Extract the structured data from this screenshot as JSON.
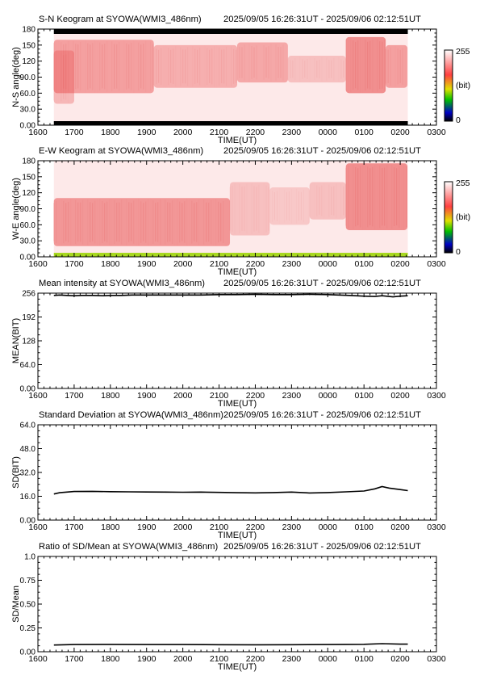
{
  "chart_data": [
    {
      "type": "heatmap",
      "title": "S-N Keogram at SYOWA(WMI3_486nm)",
      "subtitle": "2025/09/05 16:26:31UT - 2025/09/06 02:12:51UT",
      "xlabel": "TIME(UT)",
      "ylabel": "N-S angle(deg)",
      "x_ticks": [
        "1600",
        "1700",
        "1800",
        "1900",
        "2000",
        "2100",
        "2200",
        "2300",
        "0000",
        "0100",
        "0200",
        "0300"
      ],
      "xlim_hours": [
        16,
        27
      ],
      "y_ticks": [
        "0.00",
        "30.0",
        "60.0",
        "90.0",
        "120",
        "150",
        "180"
      ],
      "ylim": [
        0,
        180
      ],
      "colorbar": {
        "min_label": "0",
        "max_label": "255",
        "unit": "(bit)"
      },
      "data_start_hour": 16.44,
      "data_end_hour": 26.21,
      "bands": [
        {
          "t0": 16.44,
          "t1": 19.2,
          "a0": 60,
          "a1": 160,
          "level": 0.45
        },
        {
          "t0": 16.44,
          "t1": 17.0,
          "a0": 40,
          "a1": 140,
          "level": 0.3
        },
        {
          "t0": 19.2,
          "t1": 21.5,
          "a0": 70,
          "a1": 150,
          "level": 0.35
        },
        {
          "t0": 21.5,
          "t1": 22.9,
          "a0": 80,
          "a1": 155,
          "level": 0.4
        },
        {
          "t0": 22.9,
          "t1": 24.5,
          "a0": 80,
          "a1": 130,
          "level": 0.25
        },
        {
          "t0": 24.5,
          "t1": 25.6,
          "a0": 60,
          "a1": 165,
          "level": 0.55
        },
        {
          "t0": 25.6,
          "t1": 26.2,
          "a0": 70,
          "a1": 150,
          "level": 0.45
        }
      ]
    },
    {
      "type": "heatmap",
      "title": "E-W Keogram at SYOWA(WMI3_486nm)",
      "subtitle": "2025/09/05 16:26:31UT - 2025/09/06 02:12:51UT",
      "xlabel": "TIME(UT)",
      "ylabel": "W-E angle(deg)",
      "x_ticks": [
        "1600",
        "1700",
        "1800",
        "1900",
        "2000",
        "2100",
        "2200",
        "2300",
        "0000",
        "0100",
        "0200",
        "0300"
      ],
      "xlim_hours": [
        16,
        27
      ],
      "y_ticks": [
        "0.00",
        "30.0",
        "60.0",
        "90.0",
        "120",
        "150",
        "180"
      ],
      "ylim": [
        0,
        180
      ],
      "colorbar": {
        "min_label": "0",
        "max_label": "255",
        "unit": "(bit)"
      },
      "data_start_hour": 16.44,
      "data_end_hour": 26.21,
      "bands": [
        {
          "t0": 16.44,
          "t1": 21.3,
          "a0": 20,
          "a1": 110,
          "level": 0.5
        },
        {
          "t0": 21.3,
          "t1": 22.4,
          "a0": 40,
          "a1": 140,
          "level": 0.25
        },
        {
          "t0": 22.4,
          "t1": 23.5,
          "a0": 60,
          "a1": 130,
          "level": 0.2
        },
        {
          "t0": 23.5,
          "t1": 24.5,
          "a0": 70,
          "a1": 140,
          "level": 0.25
        },
        {
          "t0": 24.5,
          "t1": 26.2,
          "a0": 50,
          "a1": 175,
          "level": 0.55
        }
      ]
    },
    {
      "type": "line",
      "title": "Mean intensity at SYOWA(WMI3_486nm)",
      "subtitle": "2025/09/05 16:26:31UT - 2025/09/06 02:12:51UT",
      "xlabel": "TIME(UT)",
      "ylabel": "MEAN(BIT)",
      "x_ticks": [
        "1600",
        "1700",
        "1800",
        "1900",
        "2000",
        "2100",
        "2200",
        "2300",
        "0000",
        "0100",
        "0200",
        "0300"
      ],
      "xlim_hours": [
        16,
        27
      ],
      "y_ticks": [
        "0.00",
        "64.0",
        "128",
        "192",
        "256"
      ],
      "ylim": [
        0,
        256
      ],
      "series": [
        {
          "x": [
            16.44,
            16.6,
            16.8,
            17.0,
            17.2,
            17.5,
            17.8,
            18.0,
            18.3,
            18.6,
            19.0,
            19.5,
            20.0,
            20.5,
            21.0,
            21.5,
            22.0,
            22.5,
            23.0,
            23.5,
            24.0,
            24.3,
            24.6,
            25.0,
            25.3,
            25.5,
            25.8,
            26.0,
            26.21
          ],
          "y": [
            250,
            251,
            250,
            249,
            250,
            250,
            249,
            250,
            250,
            251,
            251,
            251,
            251,
            251,
            252,
            252,
            253,
            252,
            252,
            253,
            252,
            251,
            250,
            248,
            247,
            249,
            246,
            248,
            249
          ]
        }
      ]
    },
    {
      "type": "line",
      "title": "Standard Deviation at SYOWA(WMI3_486nm)",
      "subtitle": "2025/09/05 16:26:31UT - 2025/09/06 02:12:51UT",
      "xlabel": "TIME(UT)",
      "ylabel": "SD(BIT)",
      "x_ticks": [
        "1600",
        "1700",
        "1800",
        "1900",
        "2000",
        "2100",
        "2200",
        "2300",
        "0000",
        "0100",
        "0200",
        "0300"
      ],
      "xlim_hours": [
        16,
        27
      ],
      "y_ticks": [
        "0.00",
        "16.0",
        "32.0",
        "48.0",
        "64.0"
      ],
      "ylim": [
        0,
        64
      ],
      "series": [
        {
          "x": [
            16.44,
            16.6,
            16.8,
            17.0,
            17.5,
            18.0,
            18.5,
            19.0,
            19.5,
            20.0,
            20.5,
            21.0,
            21.5,
            22.0,
            22.5,
            23.0,
            23.5,
            24.0,
            24.5,
            25.0,
            25.3,
            25.5,
            25.7,
            26.0,
            26.21
          ],
          "y": [
            17.5,
            18.4,
            18.8,
            19.2,
            19.3,
            19.1,
            19.0,
            18.9,
            18.8,
            18.7,
            18.8,
            18.6,
            18.4,
            18.3,
            18.5,
            18.8,
            18.2,
            18.5,
            19.0,
            19.5,
            21.0,
            22.5,
            21.5,
            20.5,
            19.8
          ]
        }
      ]
    },
    {
      "type": "line",
      "title": "Ratio of SD/Mean at SYOWA(WMI3_486nm)",
      "subtitle": "2025/09/05 16:26:31UT - 2025/09/06 02:12:51UT",
      "xlabel": "TIME(UT)",
      "ylabel": "SD/Mean",
      "x_ticks": [
        "1600",
        "1700",
        "1800",
        "1900",
        "2000",
        "2100",
        "2200",
        "2300",
        "0000",
        "0100",
        "0200",
        "0300"
      ],
      "xlim_hours": [
        16,
        27
      ],
      "y_ticks": [
        "0.00",
        "0.25",
        "0.50",
        "0.75",
        "1.0"
      ],
      "ylim": [
        0,
        1.0
      ],
      "series": [
        {
          "x": [
            16.44,
            17.0,
            18.0,
            19.0,
            20.0,
            21.0,
            22.0,
            23.0,
            24.0,
            25.0,
            25.5,
            26.0,
            26.21
          ],
          "y": [
            0.07,
            0.075,
            0.077,
            0.075,
            0.075,
            0.074,
            0.073,
            0.074,
            0.075,
            0.078,
            0.085,
            0.08,
            0.08
          ]
        }
      ]
    }
  ]
}
